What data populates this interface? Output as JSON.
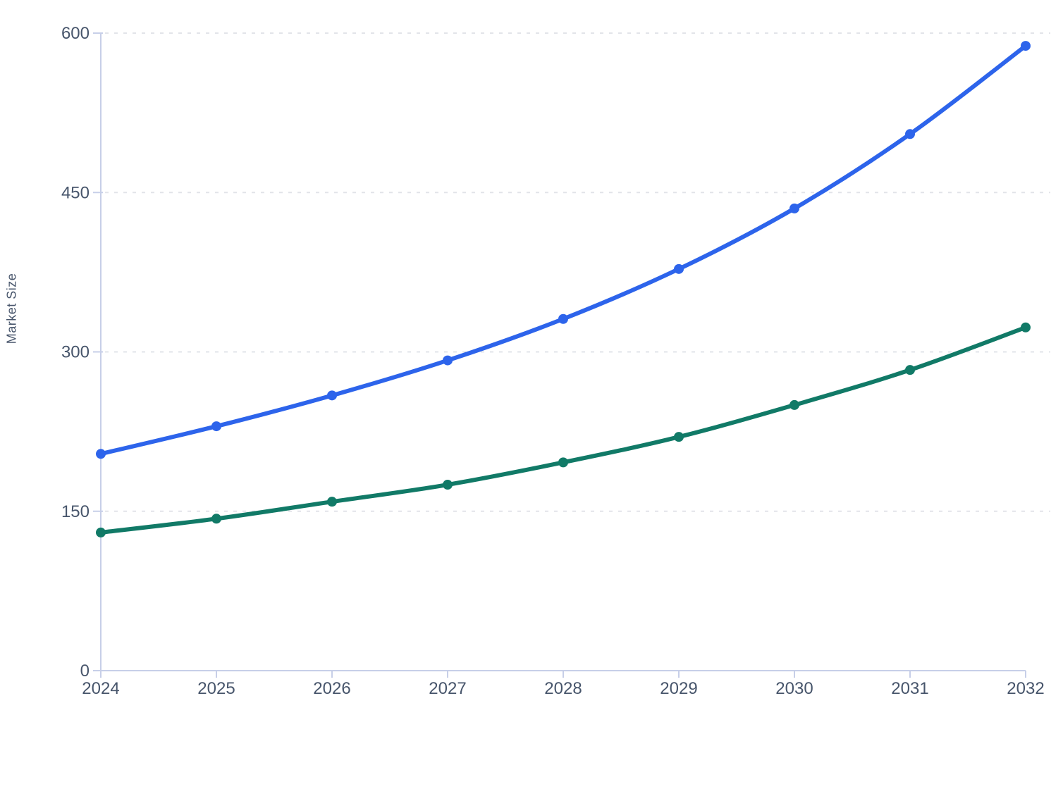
{
  "chart_data": {
    "type": "line",
    "title": "",
    "xlabel": "",
    "ylabel": "Market Size",
    "x": [
      2024,
      2025,
      2026,
      2027,
      2028,
      2029,
      2030,
      2031,
      2032
    ],
    "x_tick_labels": [
      "2024",
      "2025",
      "2026",
      "2027",
      "2028",
      "2029",
      "2030",
      "2031",
      "2032"
    ],
    "series": [
      {
        "name": "blue-series",
        "color": "#2d64eb",
        "values": [
          204,
          230,
          259,
          292,
          331,
          378,
          435,
          505,
          588
        ]
      },
      {
        "name": "green-series",
        "color": "#117a67",
        "values": [
          130,
          143,
          159,
          175,
          196,
          220,
          250,
          283,
          323
        ]
      }
    ],
    "ylim": [
      0,
      600
    ],
    "yticks": [
      0,
      150,
      300,
      450,
      600
    ],
    "y_tick_labels": [
      "0",
      "150",
      "300",
      "450",
      "600"
    ],
    "grid": "horizontal-dashed",
    "legend_position": "none",
    "marker": "circle"
  },
  "style": {
    "background_color": "#ffffff",
    "axis_color": "#c7cfe8",
    "grid_color": "#e2e4e9",
    "text_color": "#47556b",
    "tick_font_size": 24,
    "line_width": 6,
    "marker_radius": 7
  }
}
